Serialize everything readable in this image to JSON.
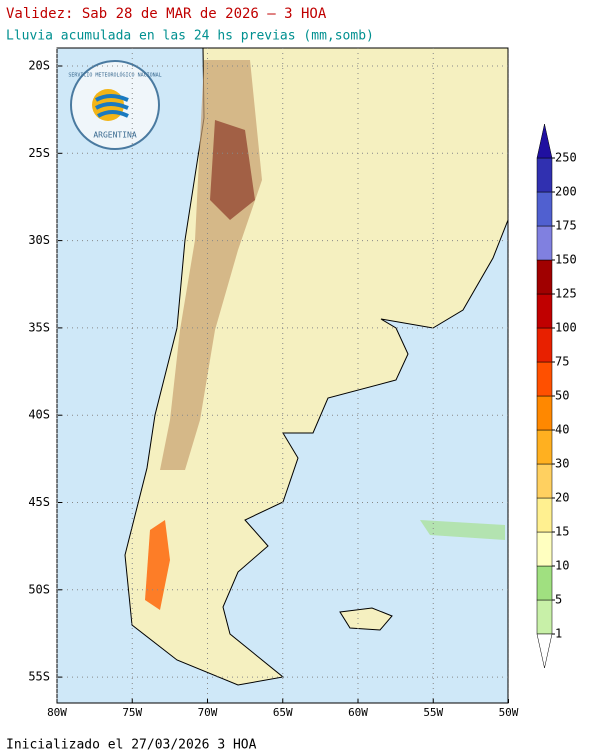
{
  "map": {
    "title": "Validez: Sab 28 de MAR de 2026 – 3 HOA",
    "subtitle": "Lluvia acumulada en las 24 hs previas (mm,somb)",
    "footer": "Inicializado el 27/03/2026 3 HOA",
    "logo": {
      "top": "SERVICIO METEOROLÓGICO NACIONAL",
      "bottom": "ARGENTINA"
    },
    "lat_ticks": [
      {
        "value": -20,
        "label": "20S"
      },
      {
        "value": -25,
        "label": "25S"
      },
      {
        "value": -30,
        "label": "30S"
      },
      {
        "value": -35,
        "label": "35S"
      },
      {
        "value": -40,
        "label": "40S"
      },
      {
        "value": -45,
        "label": "45S"
      },
      {
        "value": -50,
        "label": "50S"
      },
      {
        "value": -55,
        "label": "55S"
      }
    ],
    "lon_ticks": [
      {
        "value": -80,
        "label": "80W"
      },
      {
        "value": -75,
        "label": "75W"
      },
      {
        "value": -70,
        "label": "70W"
      },
      {
        "value": -65,
        "label": "65W"
      },
      {
        "value": -60,
        "label": "60W"
      },
      {
        "value": -55,
        "label": "55W"
      },
      {
        "value": -50,
        "label": "50W"
      }
    ],
    "grid": true,
    "colorbar": {
      "ticks": [
        1,
        5,
        10,
        15,
        20,
        30,
        40,
        50,
        75,
        100,
        125,
        150,
        175,
        200,
        250
      ],
      "colors": [
        "#c8f0a8",
        "#a0e080",
        "#ffffc0",
        "#fff090",
        "#ffd060",
        "#ffb020",
        "#ff8800",
        "#ff5000",
        "#e82000",
        "#c00000",
        "#a00000",
        "#8080e0",
        "#5060d0",
        "#3030b0"
      ],
      "under_color": "#ffffff",
      "over_color": "#2010a0"
    }
  }
}
